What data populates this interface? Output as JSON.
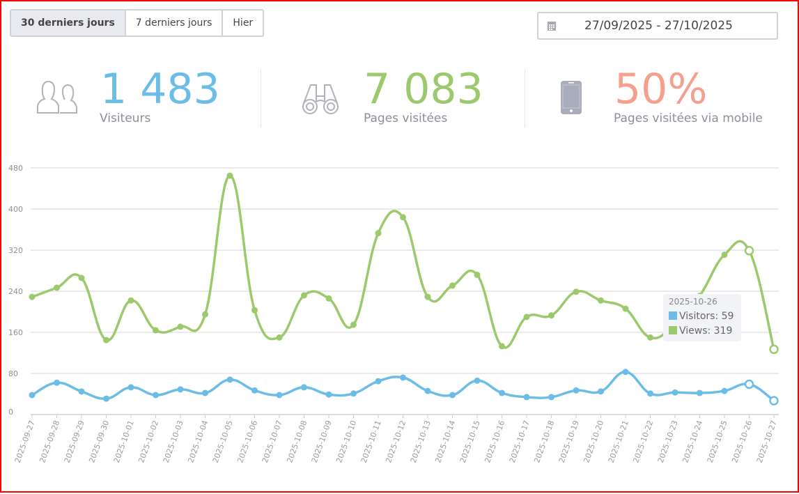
{
  "range_buttons": [
    "30 derniers jours",
    "7 derniers jours",
    "Hier"
  ],
  "date_range": "27/09/2025 - 27/10/2025",
  "stats": [
    {
      "value": "1 483",
      "label": "Visiteurs",
      "color": "#6bbde8",
      "icon": "visitors-icon"
    },
    {
      "value": "7 083",
      "label": "Pages visitées",
      "color": "#9bc96b",
      "icon": "binoculars-icon"
    },
    {
      "value": "50%",
      "label": "Pages visitées via mobile",
      "color": "#f5a08e",
      "icon": "mobile-icon"
    }
  ],
  "tooltip": {
    "date": "2025-10-26",
    "visitors": "Visitors: 59",
    "views": "Views: 319"
  },
  "chart_data": {
    "type": "line",
    "x": [
      "2025-09-27",
      "2025-09-28",
      "2025-09-29",
      "2025-09-30",
      "2025-10-01",
      "2025-10-02",
      "2025-10-03",
      "2025-10-04",
      "2025-10-05",
      "2025-10-06",
      "2025-10-07",
      "2025-10-08",
      "2025-10-09",
      "2025-10-10",
      "2025-10-11",
      "2025-10-12",
      "2025-10-13",
      "2025-10-14",
      "2025-10-15",
      "2025-10-16",
      "2025-10-17",
      "2025-10-18",
      "2025-10-19",
      "2025-10-20",
      "2025-10-21",
      "2025-10-22",
      "2025-10-23",
      "2025-10-24",
      "2025-10-25",
      "2025-10-26",
      "2025-10-27"
    ],
    "series": [
      {
        "name": "Visitors",
        "color": "#6bbde8",
        "values": [
          38,
          62,
          45,
          31,
          53,
          38,
          49,
          42,
          68,
          47,
          38,
          53,
          39,
          41,
          65,
          72,
          46,
          38,
          66,
          42,
          34,
          34,
          47,
          45,
          83,
          41,
          43,
          42,
          46,
          59,
          27
        ]
      },
      {
        "name": "Views",
        "color": "#9bc96b",
        "values": [
          229,
          247,
          266,
          145,
          222,
          164,
          171,
          195,
          465,
          203,
          150,
          232,
          226,
          175,
          353,
          384,
          229,
          251,
          272,
          133,
          190,
          193,
          239,
          222,
          206,
          150,
          176,
          231,
          311,
          319,
          127
        ]
      }
    ],
    "yticks": [
      0,
      80,
      160,
      240,
      320,
      400,
      480
    ],
    "ylim": [
      0,
      480
    ],
    "grid": true
  }
}
